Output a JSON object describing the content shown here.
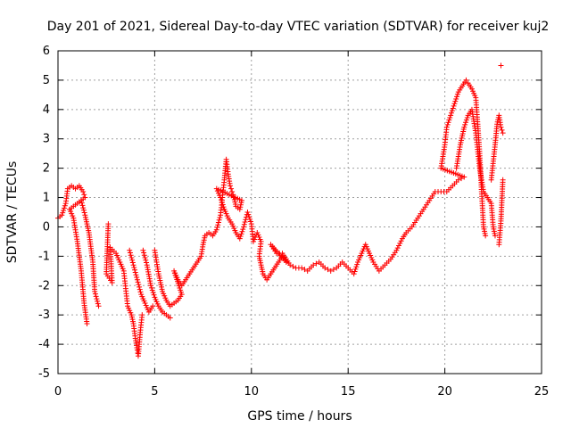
{
  "chart_data": {
    "type": "scatter",
    "title": "Day 201 of 2021, Sidereal Day-to-day VTEC variation (SDTVAR) for receiver kuj2",
    "xlabel": "GPS time / hours",
    "ylabel": "SDTVAR / TECUs",
    "xlim": [
      0,
      25
    ],
    "ylim": [
      -5,
      6
    ],
    "xticks": [
      0,
      5,
      10,
      15,
      20,
      25
    ],
    "yticks": [
      -5,
      -4,
      -3,
      -2,
      -1,
      0,
      1,
      2,
      3,
      4,
      5,
      6
    ],
    "grid": true,
    "marker": "+",
    "color": "#ff0000",
    "series": [
      {
        "name": "SDTVAR",
        "points": [
          [
            0.0,
            0.3
          ],
          [
            0.2,
            0.4
          ],
          [
            0.4,
            0.8
          ],
          [
            0.5,
            1.3
          ],
          [
            0.7,
            1.4
          ],
          [
            0.9,
            1.3
          ],
          [
            1.1,
            1.4
          ],
          [
            1.3,
            1.2
          ],
          [
            1.4,
            1.0
          ],
          [
            0.6,
            0.6
          ],
          [
            0.8,
            0.3
          ],
          [
            1.0,
            -0.5
          ],
          [
            1.2,
            -1.5
          ],
          [
            1.35,
            -2.6
          ],
          [
            1.5,
            -3.3
          ],
          [
            1.2,
            0.9
          ],
          [
            1.4,
            0.4
          ],
          [
            1.6,
            -0.2
          ],
          [
            1.8,
            -1.2
          ],
          [
            1.9,
            -2.2
          ],
          [
            2.1,
            -2.7
          ],
          [
            2.6,
            0.1
          ],
          [
            2.5,
            -1.6
          ],
          [
            2.8,
            -1.9
          ],
          [
            2.7,
            -0.7
          ],
          [
            3.0,
            -0.9
          ],
          [
            3.2,
            -1.2
          ],
          [
            3.4,
            -1.5
          ],
          [
            3.5,
            -2.1
          ],
          [
            3.6,
            -2.7
          ],
          [
            3.8,
            -3.0
          ],
          [
            3.9,
            -3.3
          ],
          [
            4.0,
            -3.8
          ],
          [
            4.1,
            -4.2
          ],
          [
            4.15,
            -4.4
          ],
          [
            4.25,
            -3.6
          ],
          [
            4.35,
            -3.0
          ],
          [
            3.7,
            -0.8
          ],
          [
            3.9,
            -1.3
          ],
          [
            4.1,
            -1.8
          ],
          [
            4.3,
            -2.3
          ],
          [
            4.5,
            -2.6
          ],
          [
            4.7,
            -2.9
          ],
          [
            4.9,
            -2.7
          ],
          [
            4.4,
            -0.8
          ],
          [
            4.6,
            -1.3
          ],
          [
            4.8,
            -2.0
          ],
          [
            5.0,
            -2.4
          ],
          [
            5.2,
            -2.7
          ],
          [
            5.4,
            -2.9
          ],
          [
            5.6,
            -3.0
          ],
          [
            5.8,
            -3.1
          ],
          [
            5.0,
            -0.8
          ],
          [
            5.2,
            -1.6
          ],
          [
            5.4,
            -2.2
          ],
          [
            5.6,
            -2.5
          ],
          [
            5.8,
            -2.7
          ],
          [
            6.0,
            -2.6
          ],
          [
            6.2,
            -2.5
          ],
          [
            6.4,
            -2.3
          ],
          [
            6.0,
            -1.5
          ],
          [
            6.2,
            -1.8
          ],
          [
            6.4,
            -2.0
          ],
          [
            6.6,
            -1.8
          ],
          [
            6.8,
            -1.6
          ],
          [
            7.0,
            -1.4
          ],
          [
            7.2,
            -1.2
          ],
          [
            7.4,
            -1.0
          ],
          [
            7.5,
            -0.6
          ],
          [
            7.6,
            -0.3
          ],
          [
            7.8,
            -0.2
          ],
          [
            8.0,
            -0.3
          ],
          [
            8.2,
            -0.1
          ],
          [
            8.4,
            0.4
          ],
          [
            8.5,
            1.0
          ],
          [
            8.6,
            1.6
          ],
          [
            8.7,
            2.3
          ],
          [
            8.8,
            1.8
          ],
          [
            8.9,
            1.4
          ],
          [
            9.0,
            1.2
          ],
          [
            9.1,
            1.0
          ],
          [
            9.2,
            0.7
          ],
          [
            9.4,
            0.6
          ],
          [
            9.5,
            0.9
          ],
          [
            8.2,
            1.3
          ],
          [
            8.4,
            1.0
          ],
          [
            8.6,
            0.6
          ],
          [
            8.8,
            0.3
          ],
          [
            9.0,
            0.1
          ],
          [
            9.2,
            -0.2
          ],
          [
            9.4,
            -0.4
          ],
          [
            9.6,
            0.0
          ],
          [
            9.8,
            0.5
          ],
          [
            10.0,
            0.1
          ],
          [
            10.1,
            -0.5
          ],
          [
            10.3,
            -0.2
          ],
          [
            10.5,
            -0.5
          ],
          [
            10.4,
            -1.0
          ],
          [
            10.6,
            -1.6
          ],
          [
            10.8,
            -1.8
          ],
          [
            11.0,
            -1.6
          ],
          [
            11.2,
            -1.4
          ],
          [
            11.4,
            -1.2
          ],
          [
            11.6,
            -1.0
          ],
          [
            11.8,
            -1.2
          ],
          [
            11.0,
            -0.6
          ],
          [
            11.3,
            -0.9
          ],
          [
            11.6,
            -0.9
          ],
          [
            12.0,
            -1.3
          ],
          [
            12.3,
            -1.4
          ],
          [
            12.6,
            -1.4
          ],
          [
            12.9,
            -1.5
          ],
          [
            13.2,
            -1.3
          ],
          [
            13.5,
            -1.2
          ],
          [
            13.8,
            -1.4
          ],
          [
            14.1,
            -1.5
          ],
          [
            14.4,
            -1.4
          ],
          [
            14.7,
            -1.2
          ],
          [
            15.0,
            -1.4
          ],
          [
            15.3,
            -1.6
          ],
          [
            15.5,
            -1.2
          ],
          [
            15.7,
            -0.9
          ],
          [
            15.9,
            -0.6
          ],
          [
            16.1,
            -0.9
          ],
          [
            16.3,
            -1.2
          ],
          [
            16.6,
            -1.5
          ],
          [
            16.9,
            -1.3
          ],
          [
            17.2,
            -1.1
          ],
          [
            17.5,
            -0.8
          ],
          [
            17.8,
            -0.4
          ],
          [
            18.0,
            -0.2
          ],
          [
            18.3,
            0.0
          ],
          [
            18.6,
            0.3
          ],
          [
            18.9,
            0.6
          ],
          [
            19.2,
            0.9
          ],
          [
            19.5,
            1.2
          ],
          [
            19.8,
            1.2
          ],
          [
            20.1,
            1.2
          ],
          [
            20.4,
            1.4
          ],
          [
            20.7,
            1.6
          ],
          [
            21.0,
            1.7
          ],
          [
            19.8,
            2.0
          ],
          [
            20.0,
            2.8
          ],
          [
            20.1,
            3.4
          ],
          [
            20.3,
            3.8
          ],
          [
            20.5,
            4.2
          ],
          [
            20.7,
            4.6
          ],
          [
            20.9,
            4.8
          ],
          [
            21.1,
            5.0
          ],
          [
            21.2,
            4.9
          ],
          [
            21.4,
            4.7
          ],
          [
            21.6,
            4.4
          ],
          [
            21.7,
            3.5
          ],
          [
            21.8,
            2.5
          ],
          [
            21.9,
            1.2
          ],
          [
            22.0,
            0.0
          ],
          [
            22.1,
            -0.3
          ],
          [
            20.6,
            2.0
          ],
          [
            20.8,
            2.8
          ],
          [
            21.0,
            3.4
          ],
          [
            21.2,
            3.8
          ],
          [
            21.4,
            4.0
          ],
          [
            21.6,
            3.2
          ],
          [
            21.8,
            2.0
          ],
          [
            22.0,
            1.2
          ],
          [
            22.2,
            1.0
          ],
          [
            22.4,
            0.8
          ],
          [
            22.5,
            0.0
          ],
          [
            22.6,
            -0.3
          ],
          [
            22.4,
            1.6
          ],
          [
            22.6,
            2.8
          ],
          [
            22.7,
            3.5
          ],
          [
            22.8,
            3.8
          ],
          [
            22.9,
            3.4
          ],
          [
            23.0,
            3.2
          ],
          [
            22.8,
            -0.6
          ],
          [
            22.9,
            0.2
          ],
          [
            23.0,
            1.6
          ],
          [
            22.9,
            5.5
          ]
        ]
      }
    ]
  }
}
